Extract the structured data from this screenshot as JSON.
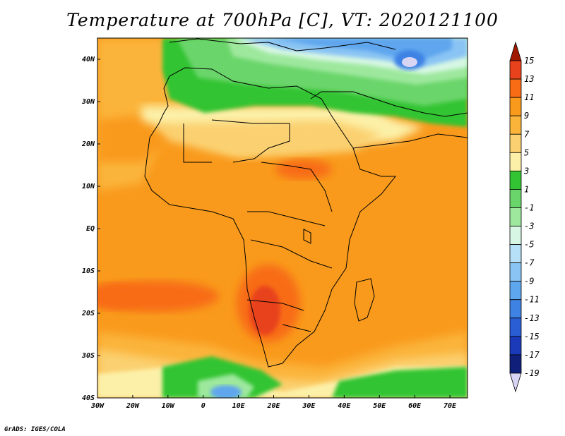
{
  "title": "Temperature at 700hPa [C], VT: 2020121100",
  "credit": "GrADS: IGES/COLA",
  "map": {
    "variable": "Temperature at 700hPa",
    "units": "C",
    "valid_time": "2020121100",
    "lon_range": [
      -30,
      75
    ],
    "lat_range": [
      -40,
      45
    ],
    "x_ticks": [
      {
        "lon": -30,
        "label": "30W"
      },
      {
        "lon": -20,
        "label": "20W"
      },
      {
        "lon": -10,
        "label": "10W"
      },
      {
        "lon": 0,
        "label": "0"
      },
      {
        "lon": 10,
        "label": "10E"
      },
      {
        "lon": 20,
        "label": "20E"
      },
      {
        "lon": 30,
        "label": "30E"
      },
      {
        "lon": 40,
        "label": "40E"
      },
      {
        "lon": 50,
        "label": "50E"
      },
      {
        "lon": 60,
        "label": "60E"
      },
      {
        "lon": 70,
        "label": "70E"
      }
    ],
    "y_ticks": [
      {
        "lat": 40,
        "label": "40N"
      },
      {
        "lat": 30,
        "label": "30N"
      },
      {
        "lat": 20,
        "label": "20N"
      },
      {
        "lat": 10,
        "label": "10N"
      },
      {
        "lat": 0,
        "label": "EQ"
      },
      {
        "lat": -10,
        "label": "10S"
      },
      {
        "lat": -20,
        "label": "20S"
      },
      {
        "lat": -30,
        "label": "30S"
      },
      {
        "lat": -40,
        "label": "40S"
      }
    ]
  },
  "colorbar": {
    "levels": [
      "15",
      "13",
      "11",
      "9",
      "7",
      "5",
      "3",
      "1",
      "-1",
      "-3",
      "-5",
      "-7",
      "-9",
      "-11",
      "-13",
      "-15",
      "-17",
      "-19"
    ],
    "colors": [
      "#a01800",
      "#e8421c",
      "#f86c16",
      "#f99a1c",
      "#fbb43a",
      "#fbd070",
      "#fcf0a8",
      "#33c433",
      "#6ad56a",
      "#9ee89e",
      "#d7f7e4",
      "#b6dff8",
      "#8ac4f4",
      "#5ea6ee",
      "#3e82e4",
      "#2a5ed4",
      "#1a3aba",
      "#10207a",
      "#d8d4f4"
    ]
  }
}
